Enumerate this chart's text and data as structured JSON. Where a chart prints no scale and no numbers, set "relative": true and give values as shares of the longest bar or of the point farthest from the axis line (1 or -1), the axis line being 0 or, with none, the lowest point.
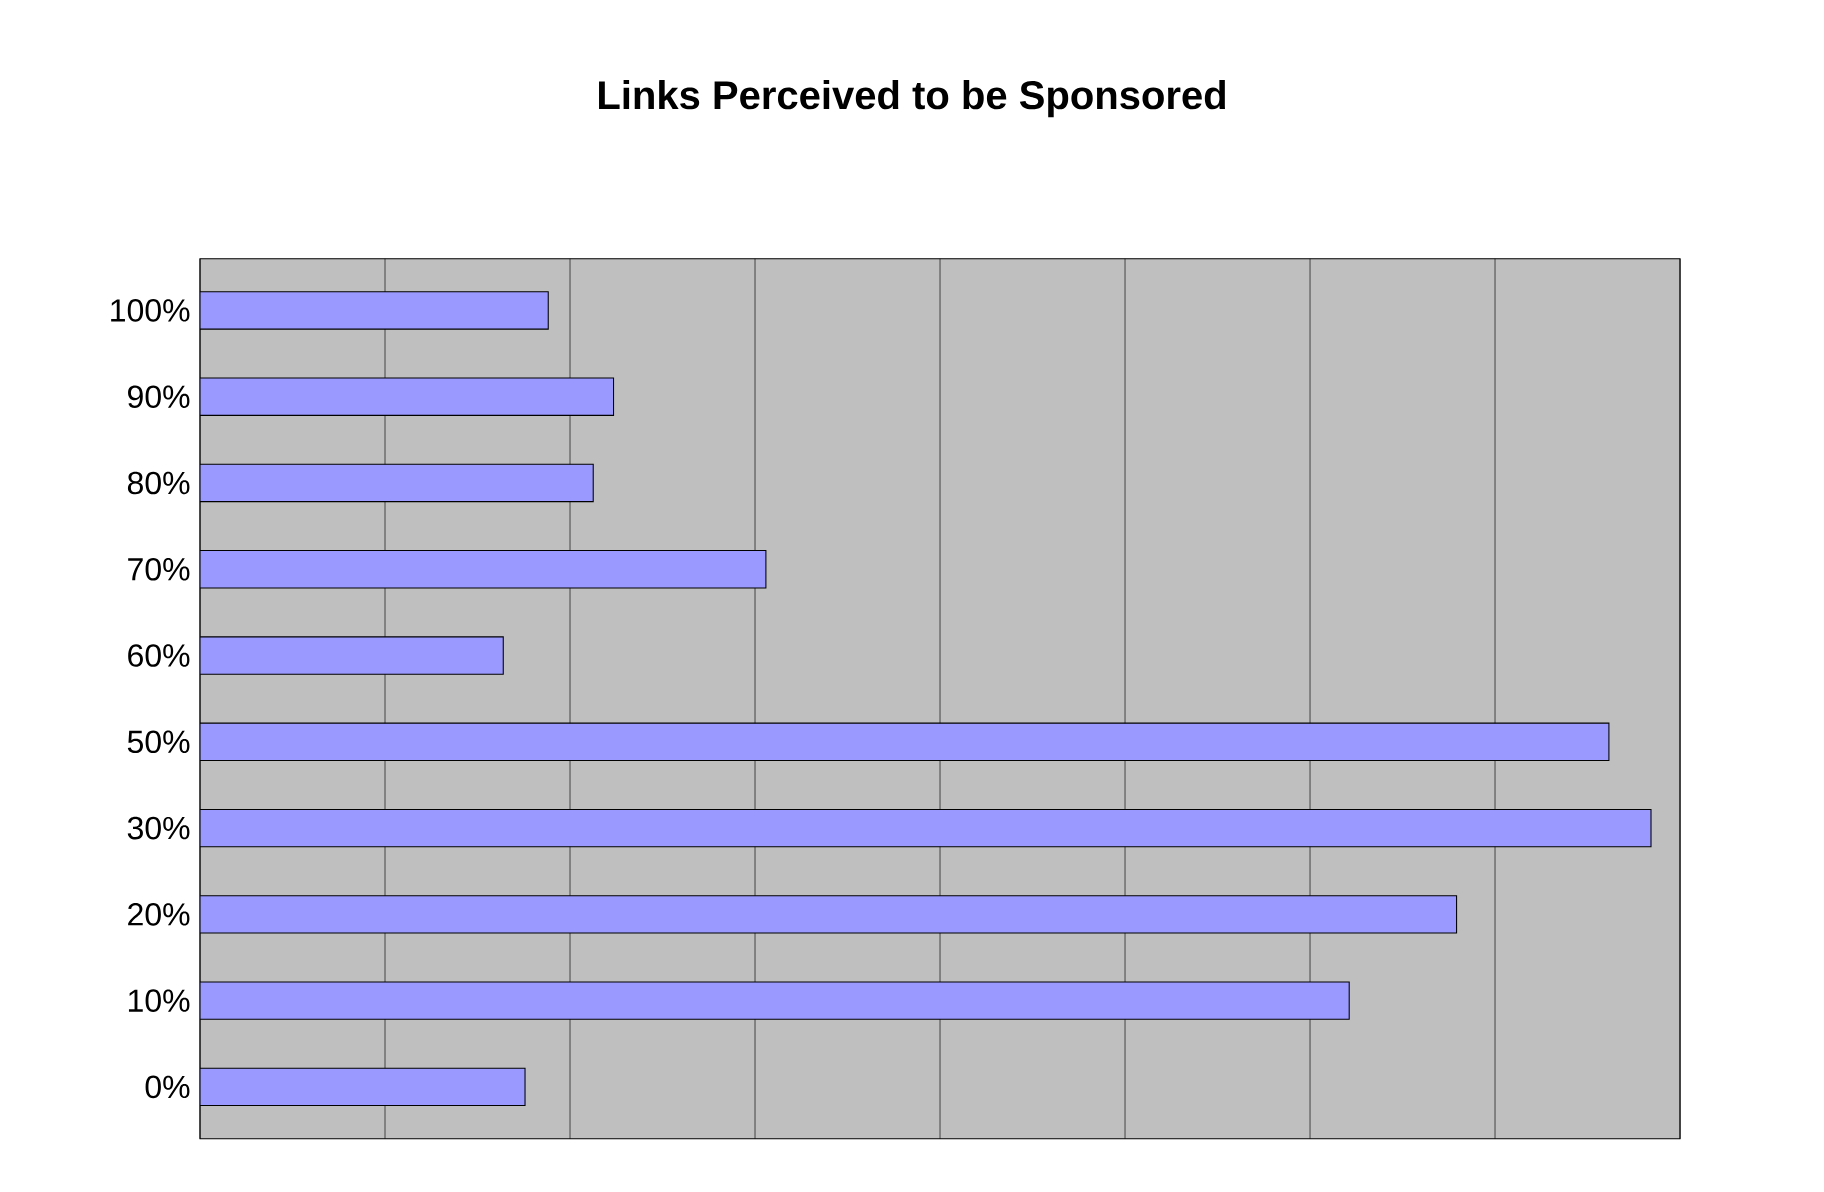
{
  "chart_data": {
    "type": "bar",
    "orientation": "horizontal",
    "relative": true,
    "title": "Links Perceived to be Sponsored",
    "categories": [
      "100%",
      "90%",
      "80%",
      "70%",
      "60%",
      "50%",
      "30%",
      "20%",
      "10%",
      "0%"
    ],
    "values": [
      0.24,
      0.285,
      0.271,
      0.39,
      0.209,
      0.971,
      1,
      0.866,
      0.792,
      0.224
    ],
    "color": "#9999ff",
    "grid": "x"
  }
}
